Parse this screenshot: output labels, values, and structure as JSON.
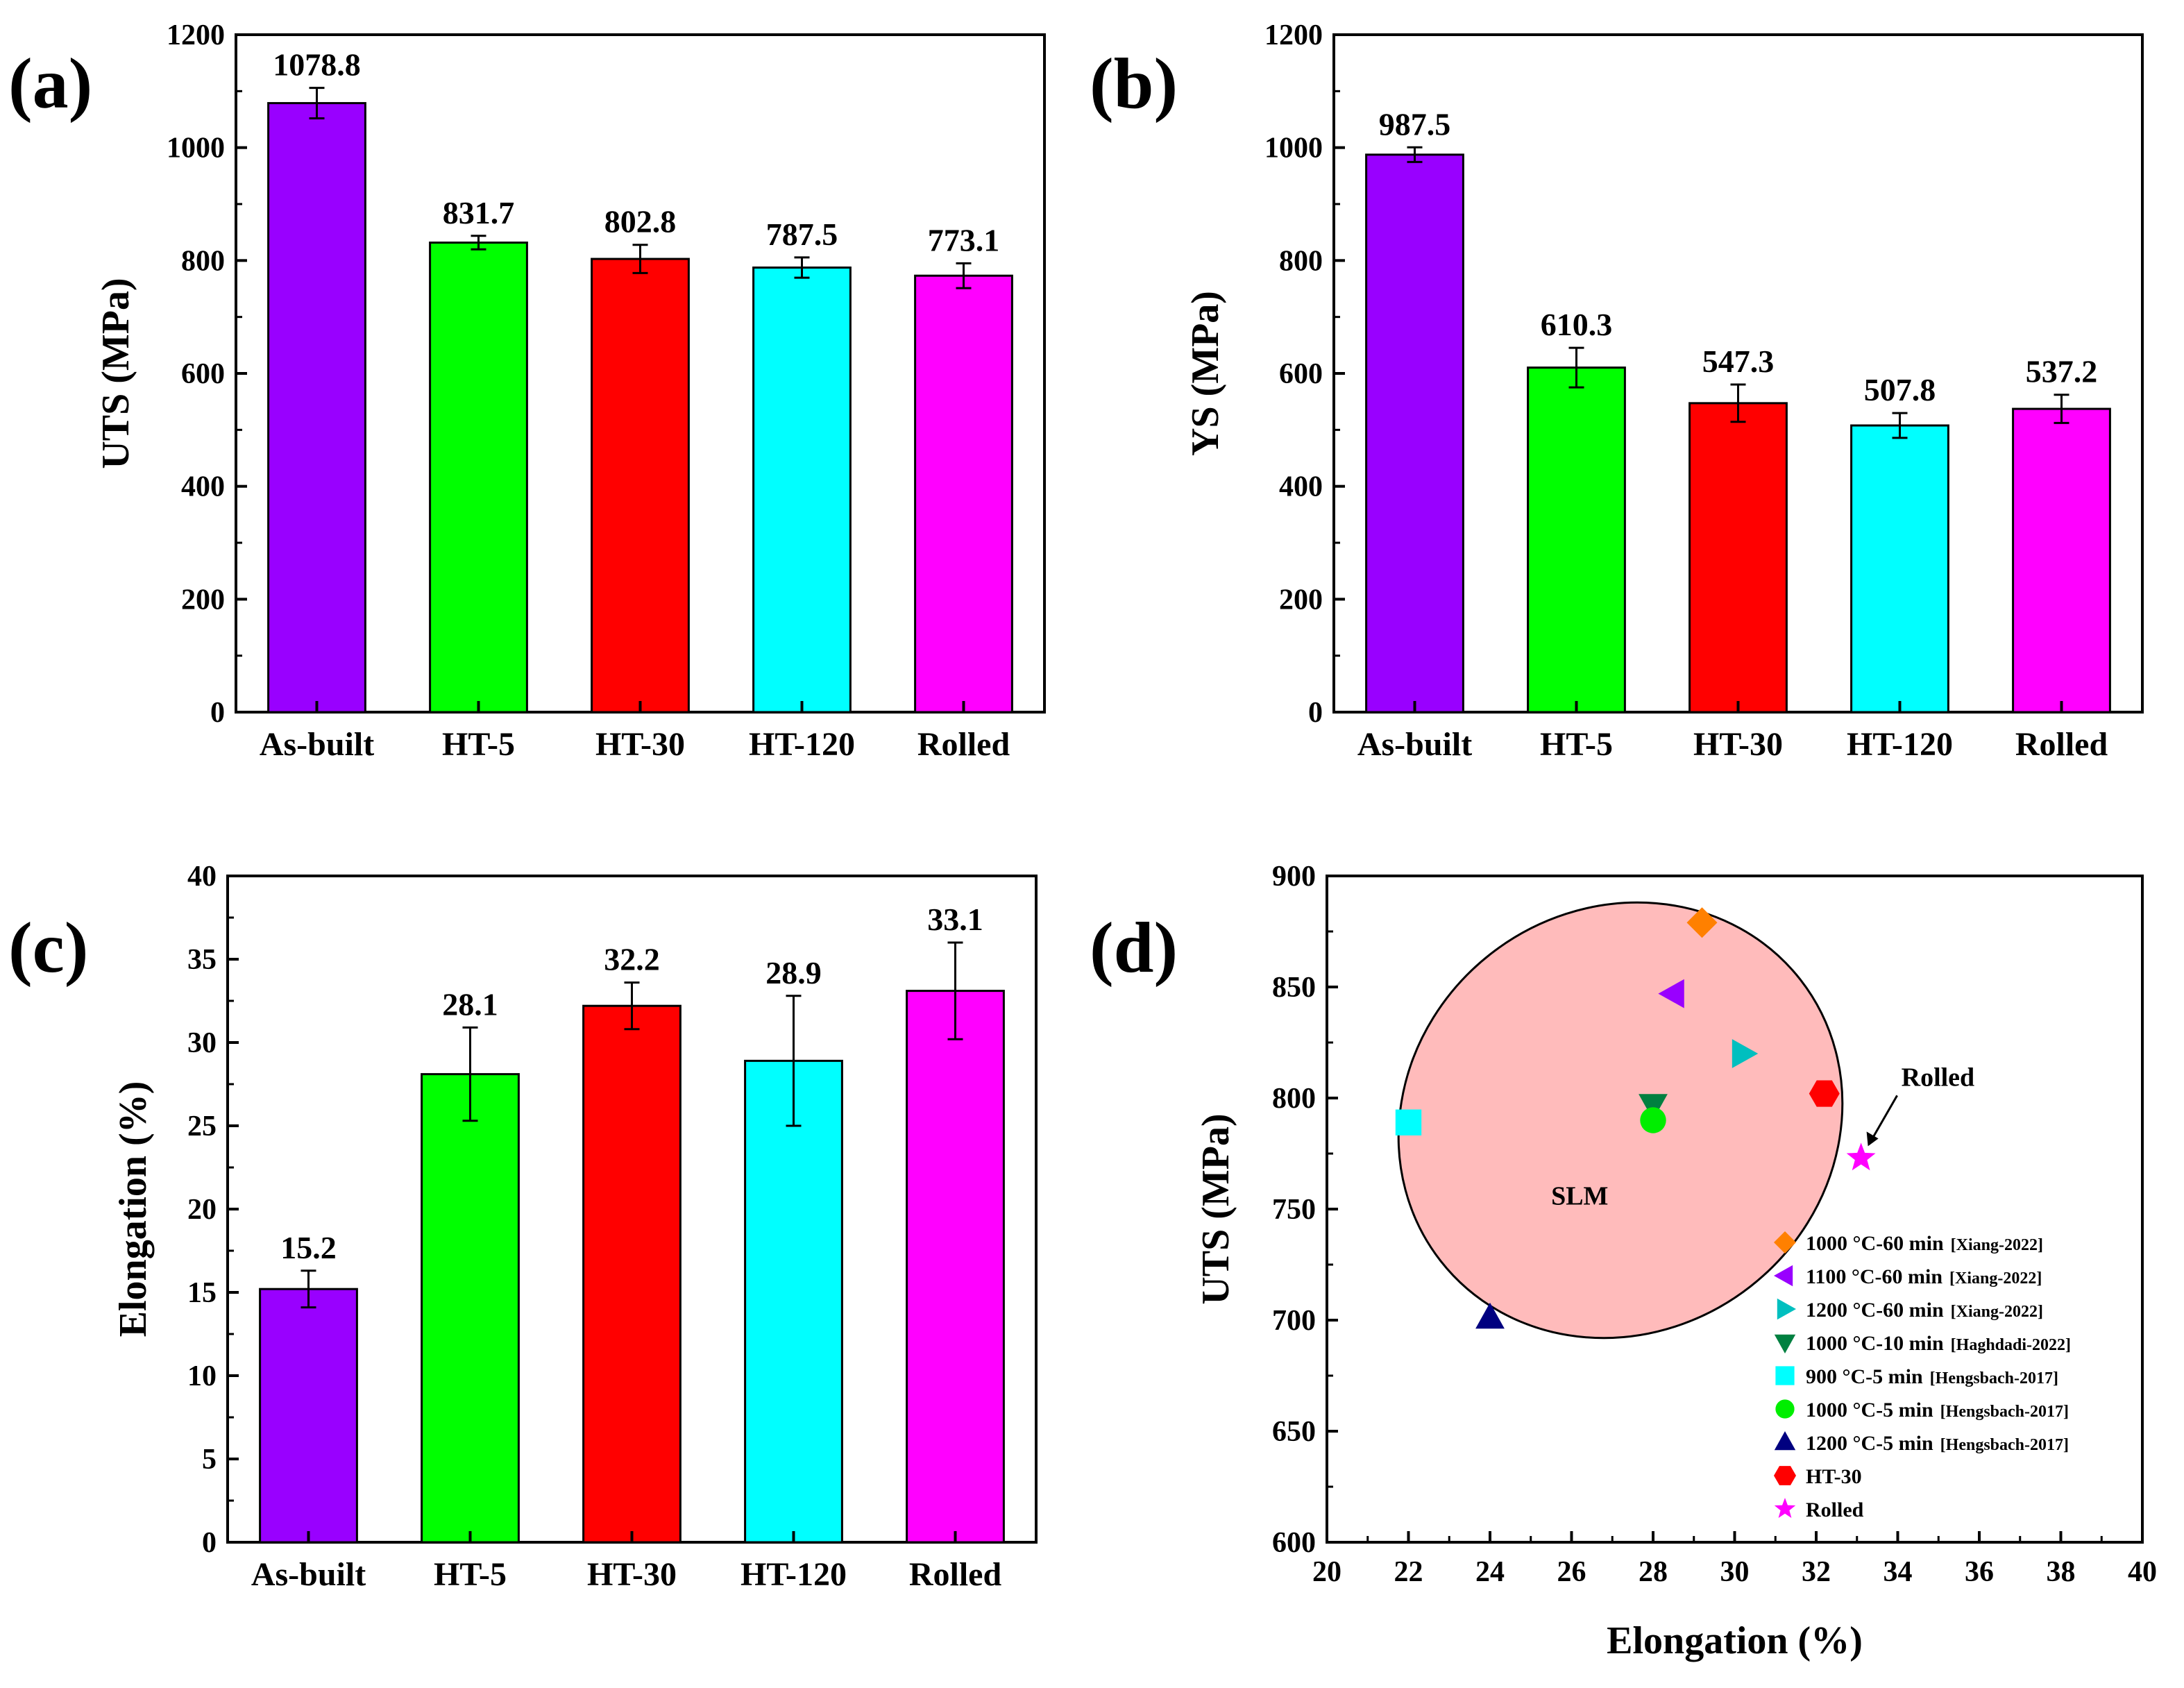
{
  "chart_data": [
    {
      "id": "a",
      "panel_label": "(a)",
      "type": "bar",
      "title": "",
      "xlabel": "",
      "ylabel": "UTS (MPa)",
      "ylim": [
        0,
        1200
      ],
      "yticks": [
        0,
        200,
        400,
        600,
        800,
        1000,
        1200
      ],
      "categories": [
        "As-built",
        "HT-5",
        "HT-30",
        "HT-120",
        "Rolled"
      ],
      "values": [
        1078.8,
        831.7,
        802.8,
        787.5,
        773.1
      ],
      "errors": [
        27,
        12,
        25,
        18,
        22
      ],
      "value_labels": [
        "1078.8",
        "831.7",
        "802.8",
        "787.5",
        "773.1"
      ],
      "colors": [
        "#9900ff",
        "#00ff00",
        "#ff0000",
        "#00ffff",
        "#ff00ff"
      ]
    },
    {
      "id": "b",
      "panel_label": "(b)",
      "type": "bar",
      "title": "",
      "xlabel": "",
      "ylabel": "YS (MPa)",
      "ylim": [
        0,
        1200
      ],
      "yticks": [
        0,
        200,
        400,
        600,
        800,
        1000,
        1200
      ],
      "categories": [
        "As-built",
        "HT-5",
        "HT-30",
        "HT-120",
        "Rolled"
      ],
      "values": [
        987.5,
        610.3,
        547.3,
        507.8,
        537.2
      ],
      "errors": [
        13,
        35,
        33,
        22,
        25
      ],
      "value_labels": [
        "987.5",
        "610.3",
        "547.3",
        "507.8",
        "537.2"
      ],
      "colors": [
        "#9900ff",
        "#00ff00",
        "#ff0000",
        "#00ffff",
        "#ff00ff"
      ]
    },
    {
      "id": "c",
      "panel_label": "(c)",
      "type": "bar",
      "title": "",
      "xlabel": "",
      "ylabel": "Elongation (%)",
      "ylim": [
        0,
        40
      ],
      "yticks": [
        0,
        5,
        10,
        15,
        20,
        25,
        30,
        35,
        40
      ],
      "categories": [
        "As-built",
        "HT-5",
        "HT-30",
        "HT-120",
        "Rolled"
      ],
      "values": [
        15.2,
        28.1,
        32.2,
        28.9,
        33.1
      ],
      "errors": [
        1.1,
        2.8,
        1.4,
        3.9,
        2.9
      ],
      "value_labels": [
        "15.2",
        "28.1",
        "32.2",
        "28.9",
        "33.1"
      ],
      "colors": [
        "#9900ff",
        "#00ff00",
        "#ff0000",
        "#00ffff",
        "#ff00ff"
      ]
    },
    {
      "id": "d",
      "panel_label": "(d)",
      "type": "scatter",
      "title": "",
      "xlabel": "Elongation (%)",
      "ylabel": "UTS (MPa)",
      "xlim": [
        20,
        40
      ],
      "ylim": [
        600,
        900
      ],
      "xticks": [
        20,
        22,
        24,
        26,
        28,
        30,
        32,
        34,
        36,
        38,
        40
      ],
      "yticks": [
        600,
        650,
        700,
        750,
        800,
        850,
        900
      ],
      "region": {
        "label": "SLM",
        "fill": "#ffbbbb",
        "center_x": 27.2,
        "center_y": 790,
        "semi_x": 5.6,
        "semi_y": 95,
        "rotation_deg": -38
      },
      "annotation": {
        "text": "Rolled",
        "target_x": 33.1,
        "target_y": 773
      },
      "series": [
        {
          "name": "1000 °C-60 min",
          "ref": "[Xiang-2022]",
          "marker": "diamond",
          "color": "#ff8000",
          "x": 29.2,
          "y": 879
        },
        {
          "name": "1100 °C-60 min",
          "ref": "[Xiang-2022]",
          "marker": "triangle-left",
          "color": "#9900ff",
          "x": 28.5,
          "y": 847
        },
        {
          "name": "1200 °C-60 min",
          "ref": "[Xiang-2022]",
          "marker": "triangle-right",
          "color": "#00bfbf",
          "x": 30.2,
          "y": 820
        },
        {
          "name": "1000 °C-10 min",
          "ref": "[Haghdadi-2022]",
          "marker": "triangle-down",
          "color": "#008040",
          "x": 28.0,
          "y": 797
        },
        {
          "name": "900 °C-5 min",
          "ref": "[Hengsbach-2017]",
          "marker": "square",
          "color": "#00ffff",
          "x": 22.0,
          "y": 789
        },
        {
          "name": "1000 °C-5 min",
          "ref": "[Hengsbach-2017]",
          "marker": "circle",
          "color": "#00ee00",
          "x": 28.0,
          "y": 790
        },
        {
          "name": "1200 °C-5 min",
          "ref": "[Hengsbach-2017]",
          "marker": "triangle-up",
          "color": "#000080",
          "x": 24.0,
          "y": 701
        },
        {
          "name": "HT-30",
          "ref": "",
          "marker": "hexagon",
          "color": "#ff0000",
          "x": 32.2,
          "y": 802
        },
        {
          "name": "Rolled",
          "ref": "",
          "marker": "star",
          "color": "#ff00ff",
          "x": 33.1,
          "y": 773
        }
      ]
    }
  ]
}
